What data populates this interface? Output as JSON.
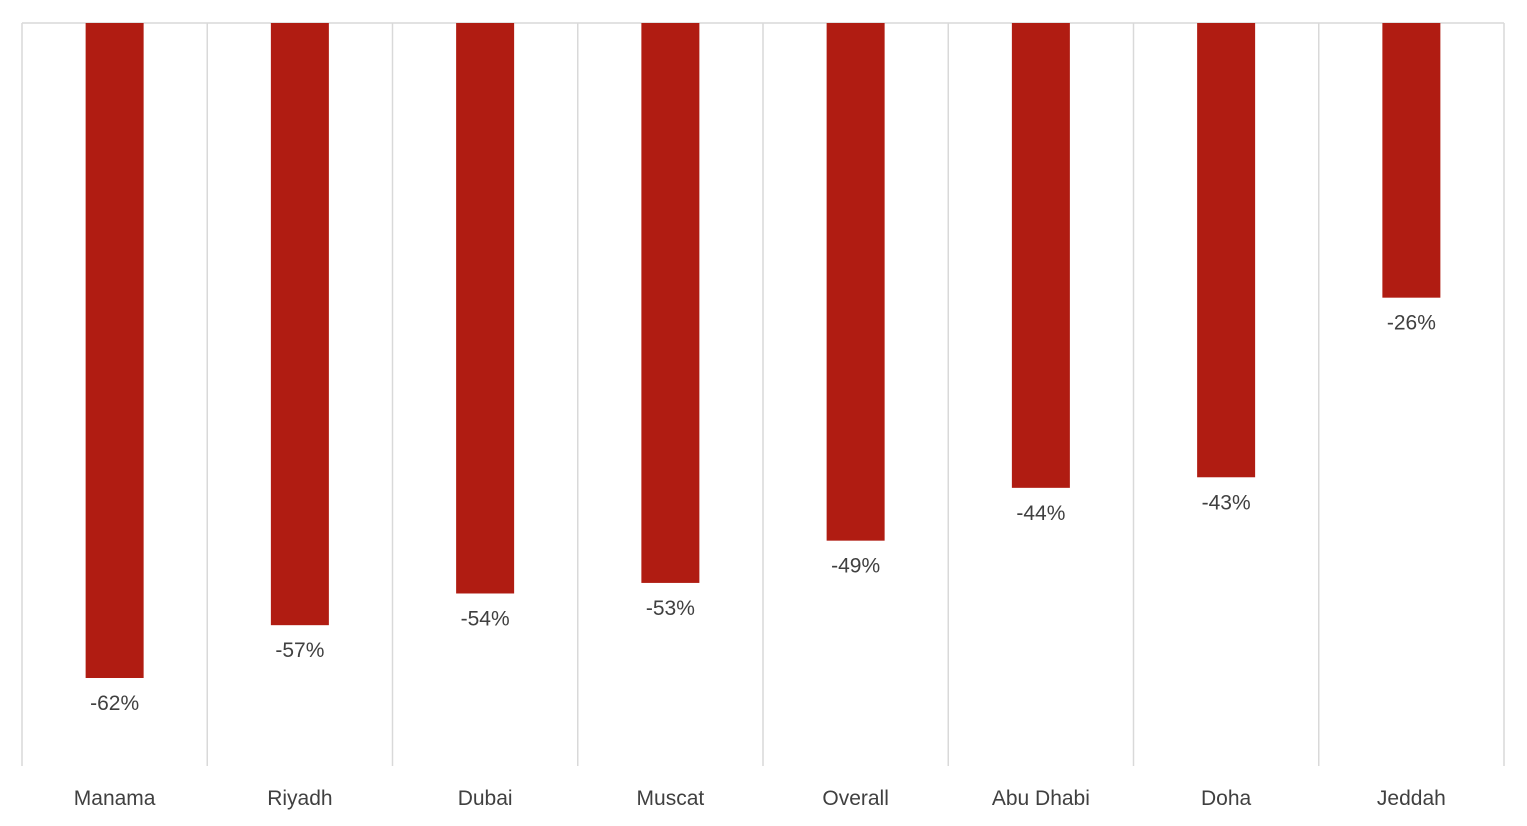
{
  "chart_data": {
    "type": "bar",
    "categories": [
      "Manama",
      "Riyadh",
      "Dubai",
      "Muscat",
      "Overall",
      "Abu Dhabi",
      "Doha",
      "Jeddah"
    ],
    "values": [
      -62,
      -57,
      -54,
      -53,
      -49,
      -44,
      -43,
      -26
    ],
    "value_labels": [
      "-62%",
      "-57%",
      "-54%",
      "-53%",
      "-49%",
      "-44%",
      "-43%",
      "-26%"
    ],
    "title": "",
    "xlabel": "",
    "ylabel": "",
    "ylim": [
      -70,
      0
    ],
    "grid": "vertical category separators",
    "legend": "none",
    "bar_color": "#B01C12",
    "gridline_color": "#D9D9D9",
    "text_color": "#404040"
  }
}
